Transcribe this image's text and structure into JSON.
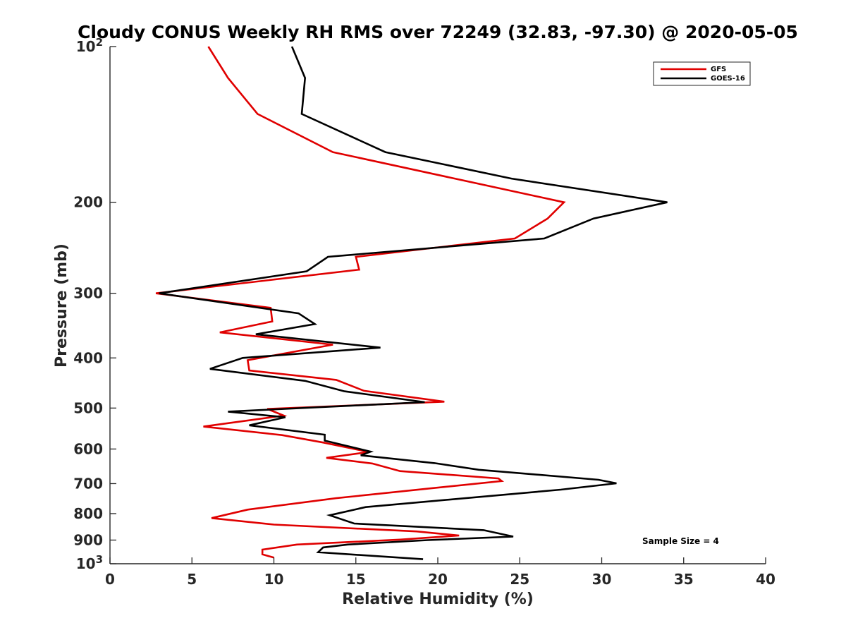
{
  "chart_data": {
    "type": "line",
    "title": "Cloudy CONUS Weekly RH RMS over 72249 (32.83, -97.30) @ 2020-05-05",
    "xlabel": "Relative Humidity (%)",
    "ylabel": "Pressure (mb)",
    "xlim": [
      0,
      40
    ],
    "ylim": [
      100,
      1000
    ],
    "y_scale": "log",
    "y_reversed": true,
    "x_ticks": [
      "0",
      "5",
      "10",
      "15",
      "20",
      "25",
      "30",
      "35",
      "40"
    ],
    "x_tick_values": [
      0,
      5,
      10,
      15,
      20,
      25,
      30,
      35,
      40
    ],
    "y_ticks": [
      {
        "value": 100,
        "base": "10",
        "exp": "2"
      },
      {
        "value": 200,
        "label": "200"
      },
      {
        "value": 300,
        "label": "300"
      },
      {
        "value": 400,
        "label": "400"
      },
      {
        "value": 500,
        "label": "500"
      },
      {
        "value": 600,
        "label": "600"
      },
      {
        "value": 700,
        "label": "700"
      },
      {
        "value": 800,
        "label": "800"
      },
      {
        "value": 900,
        "label": "900"
      },
      {
        "value": 1000,
        "base": "10",
        "exp": "3"
      }
    ],
    "grid": false,
    "legend_position": "top-right",
    "annotation": "Sample Size = 4",
    "series": [
      {
        "name": "GFS",
        "color": "#e00000",
        "points": [
          [
            6.0,
            100
          ],
          [
            7.2,
            115
          ],
          [
            9.0,
            135
          ],
          [
            13.6,
            160
          ],
          [
            27.7,
            200
          ],
          [
            26.7,
            215
          ],
          [
            24.7,
            235
          ],
          [
            15.0,
            255
          ],
          [
            15.2,
            270
          ],
          [
            2.8,
            300
          ],
          [
            9.8,
            320
          ],
          [
            9.9,
            340
          ],
          [
            6.7,
            357
          ],
          [
            13.6,
            377
          ],
          [
            8.4,
            404
          ],
          [
            8.5,
            423
          ],
          [
            13.8,
            441
          ],
          [
            15.5,
            463
          ],
          [
            20.4,
            486
          ],
          [
            9.6,
            502
          ],
          [
            10.6,
            517
          ],
          [
            5.7,
            543
          ],
          [
            10.5,
            564
          ],
          [
            13.0,
            583
          ],
          [
            15.8,
            608
          ],
          [
            13.2,
            624
          ],
          [
            16.0,
            640
          ],
          [
            17.7,
            662
          ],
          [
            23.7,
            684
          ],
          [
            23.9,
            692
          ],
          [
            19.7,
            714
          ],
          [
            13.8,
            747
          ],
          [
            8.4,
            786
          ],
          [
            6.2,
            816
          ],
          [
            10.0,
            840
          ],
          [
            18.7,
            866
          ],
          [
            21.3,
            882
          ],
          [
            17.7,
            898
          ],
          [
            11.4,
            918
          ],
          [
            9.3,
            939
          ],
          [
            9.3,
            959
          ],
          [
            10.0,
            973
          ]
        ]
      },
      {
        "name": "GOES-16",
        "color": "#000000",
        "points": [
          [
            11.1,
            100
          ],
          [
            11.9,
            115
          ],
          [
            11.7,
            135
          ],
          [
            16.8,
            160
          ],
          [
            24.5,
            180
          ],
          [
            34.0,
            200
          ],
          [
            29.5,
            215
          ],
          [
            26.5,
            235
          ],
          [
            13.3,
            255
          ],
          [
            12.0,
            272
          ],
          [
            3.0,
            300
          ],
          [
            11.5,
            328
          ],
          [
            12.5,
            344
          ],
          [
            8.9,
            360
          ],
          [
            16.5,
            382
          ],
          [
            8.1,
            400
          ],
          [
            6.1,
            420
          ],
          [
            11.9,
            443
          ],
          [
            14.3,
            464
          ],
          [
            19.2,
            487
          ],
          [
            7.2,
            508
          ],
          [
            10.7,
            521
          ],
          [
            8.5,
            540
          ],
          [
            13.1,
            563
          ],
          [
            13.1,
            578
          ],
          [
            15.9,
            607
          ],
          [
            15.3,
            617
          ],
          [
            19.8,
            639
          ],
          [
            22.5,
            658
          ],
          [
            29.8,
            688
          ],
          [
            30.9,
            699
          ],
          [
            27.5,
            719
          ],
          [
            15.6,
            777
          ],
          [
            13.4,
            806
          ],
          [
            14.9,
            836
          ],
          [
            22.8,
            861
          ],
          [
            24.6,
            886
          ],
          [
            19.4,
            900
          ],
          [
            14.5,
            918
          ],
          [
            13.0,
            930
          ],
          [
            12.7,
            950
          ],
          [
            19.1,
            980
          ]
        ]
      }
    ]
  }
}
